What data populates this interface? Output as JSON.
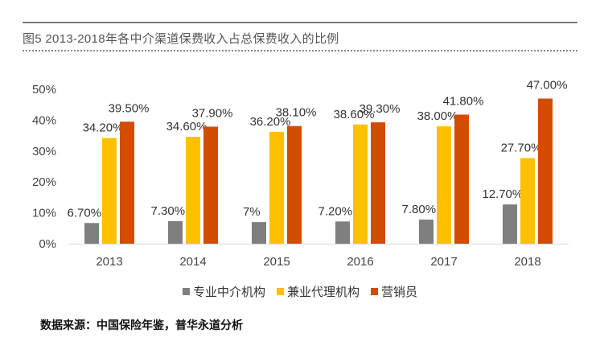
{
  "title": "图5 2013-2018年各中介渠道保费收入占总保费收入的比例",
  "source": "数据来源：中国保险年鉴，普华永道分析",
  "chart_data": {
    "type": "bar",
    "title": "图5 2013-2018年各中介渠道保费收入占总保费收入的比例",
    "categories": [
      "2013",
      "2014",
      "2015",
      "2016",
      "2017",
      "2018"
    ],
    "series": [
      {
        "name": "专业中介机构",
        "color": "#7f7f7f",
        "values": [
          6.7,
          7.3,
          7,
          7.2,
          7.8,
          12.7
        ],
        "labels": [
          "6.70%",
          "7.30%",
          "7%",
          "7.20%",
          "7.80%",
          "12.70%"
        ]
      },
      {
        "name": "兼业代理机构",
        "color": "#ffc000",
        "values": [
          34.2,
          34.6,
          36.2,
          38.6,
          38.0,
          27.7
        ],
        "labels": [
          "34.20%",
          "34.60%",
          "36.20%",
          "38.60%",
          "38.00%",
          "27.70%"
        ]
      },
      {
        "name": "营销员",
        "color": "#d24d00",
        "values": [
          39.5,
          37.9,
          38.1,
          39.3,
          41.8,
          47.0
        ],
        "labels": [
          "39.50%",
          "37.90%",
          "38.10%",
          "39.30%",
          "41.80%",
          "47.00%"
        ]
      }
    ],
    "ylim": [
      0,
      50
    ],
    "yticks": [
      "0%",
      "10%",
      "20%",
      "30%",
      "40%",
      "50%"
    ],
    "ytick_values": [
      0,
      10,
      20,
      30,
      40,
      50
    ],
    "grid": false,
    "legend": "bottom",
    "xlabel": "",
    "ylabel": ""
  }
}
